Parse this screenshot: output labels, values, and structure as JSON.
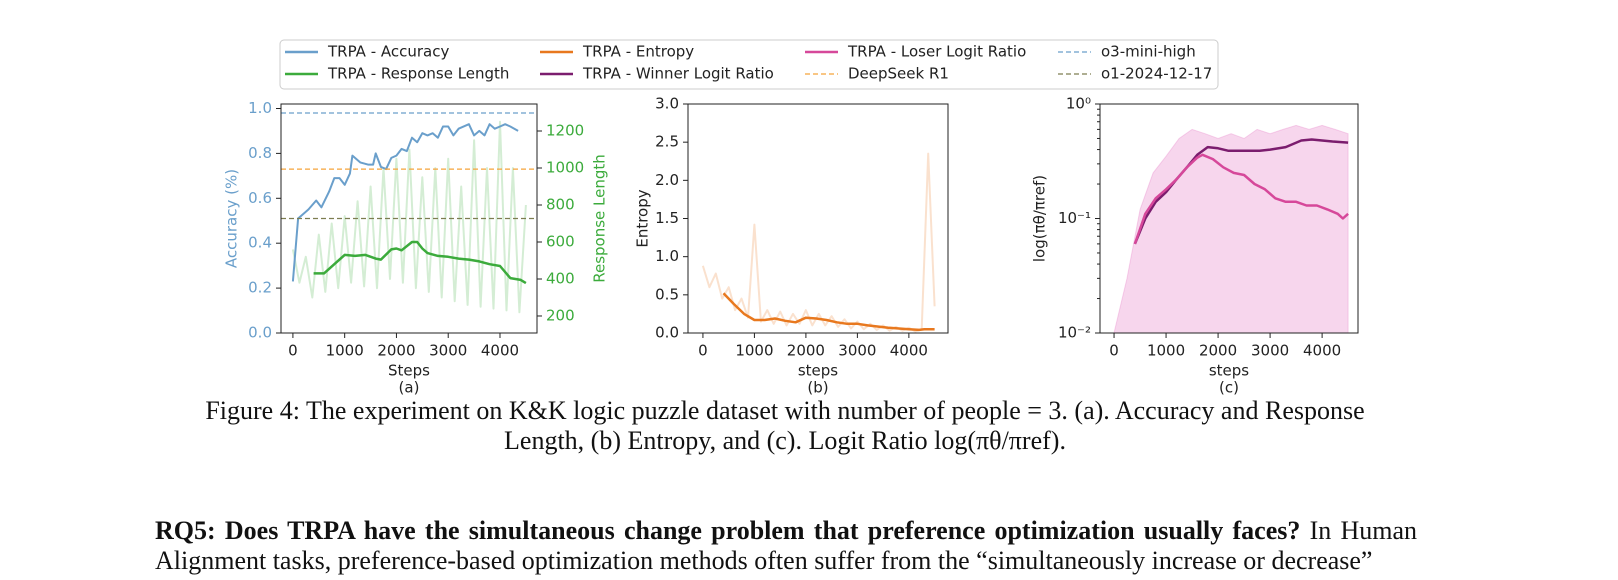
{
  "chart_data": [
    {
      "type": "line",
      "xlabel": "Steps",
      "ylabel": "Accuracy (%)",
      "y2label": "Response Length",
      "sublabel": "(a)",
      "xlim": [
        -230,
        4715
      ],
      "xticks": [
        0,
        1000,
        2000,
        3000,
        4000
      ],
      "ylim": [
        0,
        1.02
      ],
      "yticks": [
        {
          "value": 0,
          "label": "0.0"
        },
        0.2,
        0.4,
        0.6,
        0.8,
        {
          "value": 1,
          "label": "1.0"
        }
      ],
      "y2lim": [
        108,
        1346
      ],
      "y2ticks": [
        200,
        400,
        600,
        800,
        1000,
        1200
      ],
      "ycolor": "#6a9fcb",
      "y2color": "#3cab3c",
      "series": [
        {
          "axis": "y2",
          "color": "#3cab3c",
          "alpha": 0.22,
          "x": [
            0,
            125,
            250,
            375,
            500,
            625,
            750,
            875,
            1000,
            1125,
            1250,
            1375,
            1500,
            1625,
            1750,
            1875,
            2000,
            2125,
            2250,
            2375,
            2500,
            2625,
            2750,
            2875,
            3000,
            3125,
            3250,
            3375,
            3500,
            3625,
            3750,
            3875,
            4000,
            4125,
            4250,
            4375,
            4500
          ],
          "values": [
            560,
            380,
            520,
            300,
            640,
            330,
            700,
            350,
            740,
            380,
            820,
            360,
            900,
            350,
            1000,
            400,
            1050,
            380,
            1100,
            350,
            950,
            330,
            1000,
            300,
            1050,
            280,
            900,
            260,
            1150,
            250,
            1000,
            240,
            1250,
            230,
            1000,
            220,
            800
          ]
        },
        {
          "name": "TRPA - Accuracy",
          "color": "#6a9fcb",
          "x": [
            0,
            100,
            300,
            450,
            550,
            700,
            800,
            900,
            1000,
            1100,
            1150,
            1300,
            1450,
            1550,
            1600,
            1700,
            1800,
            1900,
            2000,
            2100,
            2200,
            2300,
            2400,
            2500,
            2600,
            2700,
            2800,
            2900,
            3000,
            3100,
            3200,
            3400,
            3500,
            3600,
            3700,
            3800,
            3900,
            4000,
            4100,
            4200,
            4350
          ],
          "values": [
            0.23,
            0.51,
            0.55,
            0.59,
            0.56,
            0.63,
            0.69,
            0.69,
            0.66,
            0.71,
            0.79,
            0.76,
            0.75,
            0.75,
            0.8,
            0.74,
            0.73,
            0.78,
            0.79,
            0.82,
            0.81,
            0.87,
            0.85,
            0.89,
            0.88,
            0.89,
            0.87,
            0.92,
            0.92,
            0.88,
            0.91,
            0.93,
            0.88,
            0.9,
            0.88,
            0.93,
            0.91,
            0.92,
            0.93,
            0.92,
            0.9
          ]
        },
        {
          "name": "TRPA - Response Length",
          "color": "#3cab3c",
          "axis": "y2",
          "width": 2.5,
          "x": [
            400,
            600,
            800,
            1000,
            1200,
            1400,
            1600,
            1700,
            1900,
            2000,
            2100,
            2300,
            2400,
            2500,
            2600,
            2800,
            3000,
            3200,
            3400,
            3600,
            3800,
            4000,
            4200,
            4400,
            4500
          ],
          "values": [
            430,
            430,
            480,
            530,
            525,
            530,
            510,
            505,
            560,
            565,
            555,
            600,
            600,
            565,
            540,
            525,
            520,
            510,
            505,
            495,
            480,
            470,
            405,
            395,
            378
          ]
        },
        {
          "name": "o3-mini-high",
          "color": "#6a9fcb",
          "linestyle": "dashed",
          "hline": 0.98
        },
        {
          "name": "DeepSeek R1",
          "color": "#f5a33a",
          "linestyle": "dashed",
          "hline": 0.73
        },
        {
          "name": "o1-2024-12-17",
          "color": "#7d7d50",
          "linestyle": "dashed",
          "hline": 0.51
        }
      ]
    },
    {
      "type": "line",
      "xlabel": "steps",
      "ylabel": "Entropy",
      "sublabel": "(b)",
      "xlim": [
        -290,
        4760
      ],
      "xticks": [
        0,
        1000,
        2000,
        3000,
        4000
      ],
      "ylim": [
        0,
        3
      ],
      "yticks": [
        {
          "value": 0,
          "label": "0.0"
        },
        0.5,
        {
          "value": 1,
          "label": "1.0"
        },
        1.5,
        {
          "value": 2,
          "label": "2.0"
        },
        2.5,
        {
          "value": 3,
          "label": "3.0"
        }
      ],
      "series": [
        {
          "color": "#e8781e",
          "alpha": 0.22,
          "x": [
            0,
            125,
            250,
            375,
            500,
            625,
            750,
            875,
            1000,
            1125,
            1250,
            1375,
            1500,
            1625,
            1750,
            1875,
            2000,
            2125,
            2250,
            2375,
            2500,
            2625,
            2750,
            2875,
            3000,
            3125,
            3250,
            3375,
            3500,
            3625,
            3750,
            3875,
            4000,
            4125,
            4250,
            4375,
            4500
          ],
          "values": [
            0.88,
            0.6,
            0.78,
            0.45,
            0.6,
            0.3,
            0.45,
            0.2,
            1.42,
            0.15,
            0.3,
            0.12,
            0.28,
            0.1,
            0.25,
            0.12,
            0.3,
            0.1,
            0.25,
            0.1,
            0.22,
            0.08,
            0.18,
            0.06,
            0.15,
            0.05,
            0.12,
            0.04,
            0.1,
            0.03,
            0.08,
            0.03,
            0.07,
            0.02,
            0.05,
            2.35,
            0.35
          ]
        },
        {
          "name": "TRPA - Entropy",
          "color": "#e8781e",
          "width": 2.5,
          "x": [
            400,
            600,
            800,
            1000,
            1200,
            1400,
            1600,
            1800,
            2000,
            2200,
            2400,
            2600,
            2800,
            3000,
            3200,
            3600,
            4000,
            4200,
            4300,
            4500
          ],
          "values": [
            0.52,
            0.38,
            0.25,
            0.17,
            0.17,
            0.19,
            0.16,
            0.14,
            0.2,
            0.19,
            0.17,
            0.14,
            0.12,
            0.12,
            0.1,
            0.07,
            0.05,
            0.04,
            0.05,
            0.05
          ]
        }
      ]
    },
    {
      "type": "line",
      "xlabel": "steps",
      "ylabel": "log(πθ/πref)",
      "sublabel": "(c)",
      "log_y": true,
      "xlim": [
        -270,
        4690
      ],
      "xticks": [
        0,
        1000,
        2000,
        3000,
        4000
      ],
      "ylim": [
        0.01,
        1
      ],
      "yticks": [
        {
          "value": 0.01,
          "label": "10⁻²"
        },
        {
          "value": 0.1,
          "label": "10⁻¹"
        },
        {
          "value": 1,
          "label": "10⁰"
        }
      ],
      "series": [
        {
          "color": "#e377c2",
          "alpha": 0.3,
          "fill": true,
          "x": [
            0,
            250,
            500,
            750,
            1000,
            1250,
            1500,
            1750,
            2000,
            2250,
            2500,
            2750,
            3000,
            3250,
            3500,
            3750,
            4000,
            4250,
            4500
          ],
          "values": [
            0.01,
            0.03,
            0.12,
            0.25,
            0.35,
            0.5,
            0.6,
            0.55,
            0.5,
            0.55,
            0.5,
            0.6,
            0.55,
            0.6,
            0.65,
            0.6,
            0.65,
            0.6,
            0.55
          ]
        },
        {
          "name": "TRPA - Winner Logit Ratio",
          "color": "#7b1d6e",
          "width": 2.5,
          "x": [
            400,
            600,
            800,
            1000,
            1200,
            1400,
            1600,
            1800,
            2000,
            2200,
            2500,
            2800,
            3000,
            3300,
            3600,
            3800,
            4000,
            4200,
            4500
          ],
          "values": [
            0.06,
            0.1,
            0.14,
            0.17,
            0.22,
            0.28,
            0.36,
            0.42,
            0.41,
            0.39,
            0.39,
            0.39,
            0.4,
            0.42,
            0.48,
            0.49,
            0.48,
            0.47,
            0.46
          ]
        },
        {
          "name": "TRPA - Loser Logit Ratio",
          "color": "#d6489a",
          "width": 2.5,
          "x": [
            400,
            600,
            800,
            1000,
            1200,
            1400,
            1600,
            1700,
            1900,
            2100,
            2300,
            2500,
            2700,
            2900,
            3100,
            3300,
            3500,
            3700,
            3900,
            4100,
            4300,
            4400,
            4500
          ],
          "values": [
            0.06,
            0.11,
            0.15,
            0.18,
            0.22,
            0.28,
            0.34,
            0.36,
            0.33,
            0.28,
            0.25,
            0.24,
            0.2,
            0.18,
            0.15,
            0.14,
            0.14,
            0.13,
            0.13,
            0.12,
            0.11,
            0.1,
            0.11
          ]
        }
      ]
    }
  ],
  "caption": "Figure 4: The experiment on K&K logic puzzle dataset with number of people = 3. (a). Accuracy and Response Length, (b) Entropy, and (c). Logit Ratio log(πθ/πref).",
  "paragraph": {
    "heading": "RQ5: Does TRPA have the simultaneous change problem that preference optimization usually faces?",
    "text": "In Human Alignment tasks, preference-based optimization methods often suffer from the “simultaneously increase or decrease”"
  }
}
